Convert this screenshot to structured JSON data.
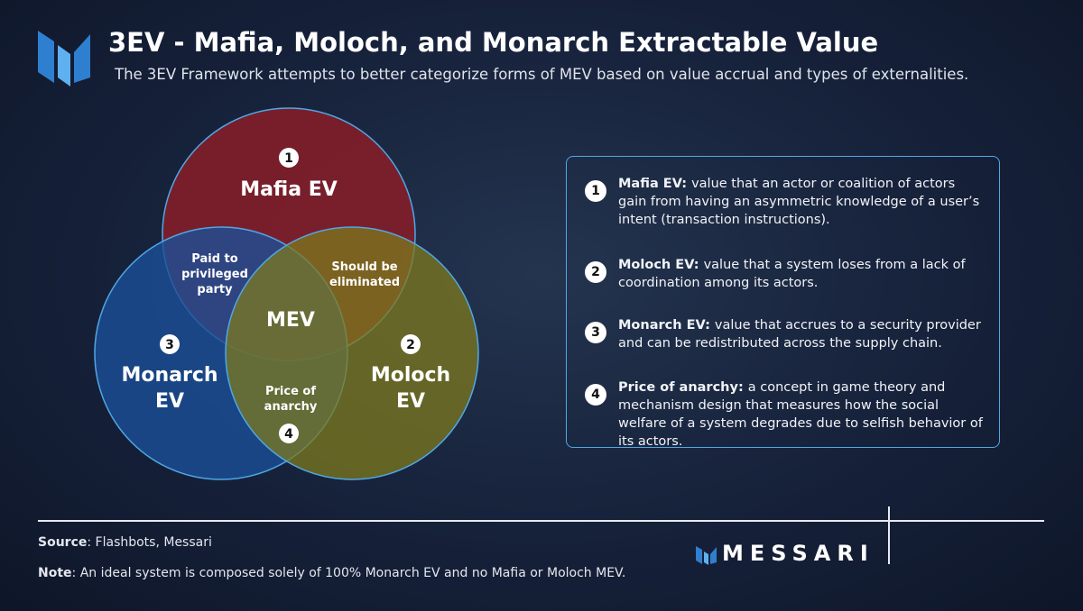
{
  "header": {
    "title": "3EV - Mafia, Moloch, and Monarch Extractable Value",
    "subtitle": "The 3EV Framework attempts to better categorize forms of MEV based on value accrual and types of externalities."
  },
  "venn": {
    "circles": [
      {
        "badge": "1",
        "label_lines": [
          "Mafia EV"
        ]
      },
      {
        "badge": "3",
        "label_lines": [
          "Monarch",
          "EV"
        ]
      },
      {
        "badge": "2",
        "label_lines": [
          "Moloch",
          "EV"
        ]
      }
    ],
    "overlaps": [
      {
        "label_lines": [
          "Paid to",
          "privileged",
          "party"
        ]
      },
      {
        "label_lines": [
          "Should be",
          "eliminated"
        ]
      },
      {
        "label_lines": [
          "Price of",
          "anarchy"
        ],
        "badge": "4"
      }
    ],
    "center": "MEV"
  },
  "definitions": [
    {
      "badge": "1",
      "term": "Mafia EV:",
      "text": "value that an actor or coalition of actors gain from having an asymmetric knowledge of a user’s intent (transaction instructions)."
    },
    {
      "badge": "2",
      "term": "Moloch EV:",
      "text": "value that a system loses from a lack of coordination among its actors."
    },
    {
      "badge": "3",
      "term": "Monarch EV:",
      "text": "value that accrues to a security provider and can be redistributed across the supply chain."
    },
    {
      "badge": "4",
      "term": "Price of anarchy:",
      "text": "a concept in game theory and mechanism design that measures how the social welfare of a system degrades due to selfish behavior of its actors."
    }
  ],
  "footer": {
    "source": {
      "label": "Source",
      "text": ": Flashbots, Messari"
    },
    "note": {
      "label": "Note",
      "text": ": An ideal system is composed solely of 100% Monarch EV and no Mafia or Moloch MEV."
    },
    "brand": "MESSARI"
  }
}
